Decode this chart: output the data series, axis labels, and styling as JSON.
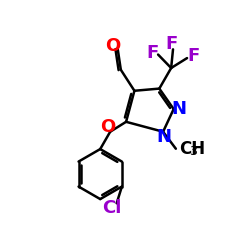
{
  "background_color": "#ffffff",
  "atom_colors": {
    "N": "#0000ff",
    "O": "#ff0000",
    "F": "#9900cc",
    "Cl": "#9900cc",
    "C": "#000000"
  },
  "bond_color": "#000000",
  "bond_width": 1.8,
  "font_size_atoms": 13,
  "font_size_sub": 9
}
